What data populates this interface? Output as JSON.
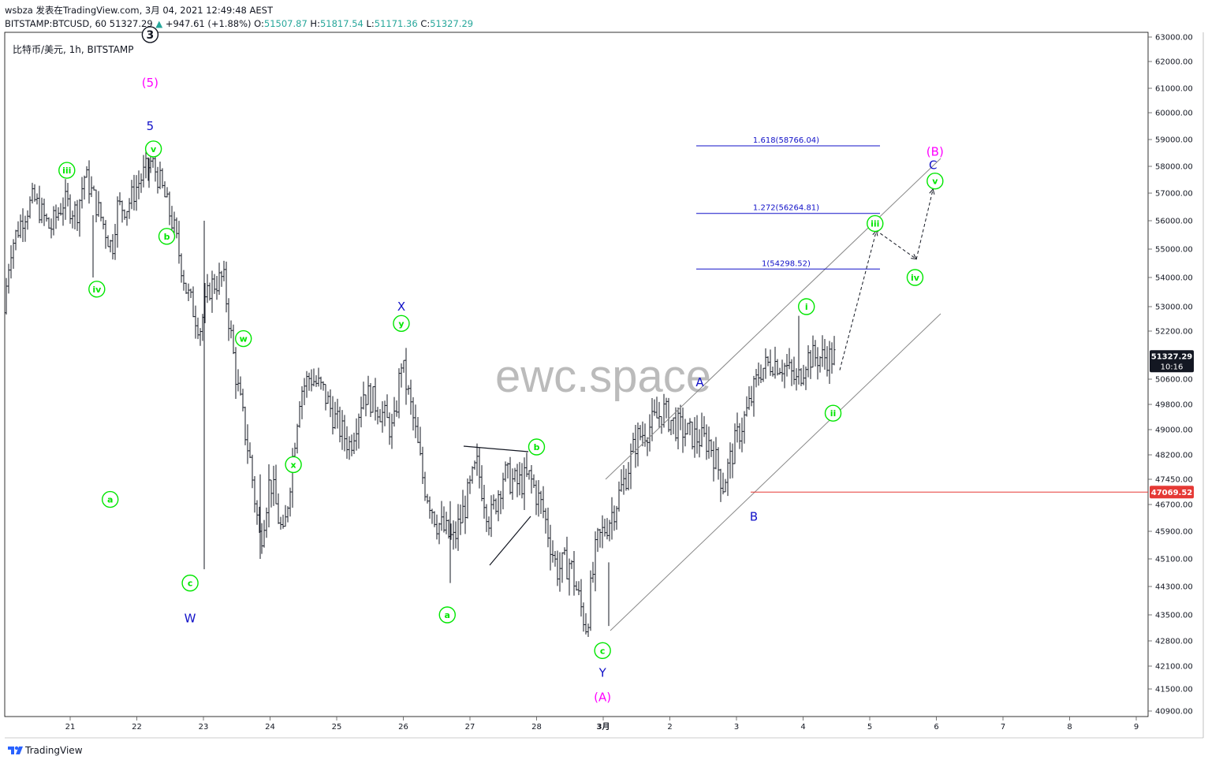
{
  "header": {
    "line1": "wsbza 发表在TradingView.com, 3月 04, 2021 12:49:48 AEST",
    "symbol": "BITSTAMP:BTCUSD, 60",
    "last": "51327.29",
    "change_arrow": "▲",
    "change": "+947.61 (+1.88%)",
    "o_label": "O:",
    "o_val": "51507.87",
    "h_label": "H:",
    "h_val": "51817.54",
    "l_label": "L:",
    "l_val": "51171.36",
    "c_label": "C:",
    "c_val": "51327.29"
  },
  "pane_title": "比特币/美元, 1h, BITSTAMP",
  "watermark": "ewc.space",
  "footer_brand": "TradingView",
  "colors": {
    "green": "#00e600",
    "blue": "#1010c8",
    "magenta": "#ff00ff",
    "red": "#e53935",
    "dark": "#131722"
  },
  "chart_data": {
    "type": "candlestick-elliott-wave",
    "instrument": "BTCUSD",
    "exchange": "BITSTAMP",
    "interval": "1h",
    "y_scale": "price",
    "y_ticks": [
      63000,
      62000,
      61000,
      60000,
      59000,
      58000,
      57000,
      56000,
      55000,
      54000,
      53000,
      52200,
      50600,
      49800,
      49000,
      48200,
      47450,
      46700,
      45900,
      45100,
      44300,
      43500,
      42800,
      42100,
      41500,
      40900
    ],
    "y_tick_labels": [
      "63000.00",
      "62000.00",
      "61000.00",
      "60000.00",
      "59000.00",
      "58000.00",
      "57000.00",
      "56000.00",
      "55000.00",
      "54000.00",
      "53000.00",
      "52200.00",
      "50600.00",
      "49800.00",
      "49000.00",
      "48200.00",
      "47450.00",
      "46700.00",
      "45900.00",
      "45100.00",
      "44300.00",
      "43500.00",
      "42800.00",
      "42100.00",
      "41500.00",
      "40900.00"
    ],
    "x_ticks": [
      "21",
      "22",
      "23",
      "24",
      "25",
      "26",
      "27",
      "28",
      "3月",
      "2",
      "3",
      "4",
      "5",
      "6",
      "7",
      "8",
      "9"
    ],
    "last_price_label": "51327.29",
    "countdown_label": "10:16",
    "support_label": "47069.52",
    "support_price": 47069.52,
    "fib_levels": [
      {
        "label": "1.618(58766.04)",
        "price": 58766.04
      },
      {
        "label": "1.272(56264.81)",
        "price": 56264.81
      },
      {
        "label": "1(54298.52)",
        "price": 54298.52
      }
    ],
    "anchors": [
      {
        "t": 0.0,
        "p": 52800
      },
      {
        "t": 0.1,
        "p": 55000
      },
      {
        "t": 0.3,
        "p": 56200
      },
      {
        "t": 0.45,
        "p": 56800
      },
      {
        "t": 0.7,
        "p": 55700
      },
      {
        "t": 0.9,
        "p": 56700
      },
      {
        "t": 1.1,
        "p": 56300
      },
      {
        "t": 1.22,
        "p": 57700
      },
      {
        "t": 1.45,
        "p": 56200
      },
      {
        "t": 1.63,
        "p": 55000
      },
      {
        "t": 1.7,
        "p": 56500
      },
      {
        "t": 1.85,
        "p": 56500
      },
      {
        "t": 2.05,
        "p": 57500
      },
      {
        "t": 2.22,
        "p": 58200
      },
      {
        "t": 2.35,
        "p": 57400
      },
      {
        "t": 2.55,
        "p": 55800
      },
      {
        "t": 2.75,
        "p": 53500
      },
      {
        "t": 2.95,
        "p": 52300
      },
      {
        "t": 3.1,
        "p": 53700
      },
      {
        "t": 3.3,
        "p": 54000
      },
      {
        "t": 3.5,
        "p": 50500
      },
      {
        "t": 3.7,
        "p": 48000
      },
      {
        "t": 3.85,
        "p": 45600
      },
      {
        "t": 4.0,
        "p": 47500
      },
      {
        "t": 4.2,
        "p": 45600
      },
      {
        "t": 4.45,
        "p": 50200
      },
      {
        "t": 4.6,
        "p": 50700
      },
      {
        "t": 4.8,
        "p": 50200
      },
      {
        "t": 5.0,
        "p": 49200
      },
      {
        "t": 5.2,
        "p": 48500
      },
      {
        "t": 5.4,
        "p": 50200
      },
      {
        "t": 5.6,
        "p": 49800
      },
      {
        "t": 5.85,
        "p": 48900
      },
      {
        "t": 5.97,
        "p": 51200
      },
      {
        "t": 6.15,
        "p": 49300
      },
      {
        "t": 6.3,
        "p": 47400
      },
      {
        "t": 6.5,
        "p": 46200
      },
      {
        "t": 6.75,
        "p": 45600
      },
      {
        "t": 6.95,
        "p": 46800
      },
      {
        "t": 7.1,
        "p": 47900
      },
      {
        "t": 7.3,
        "p": 46200
      },
      {
        "t": 7.5,
        "p": 47600
      },
      {
        "t": 7.7,
        "p": 47300
      },
      {
        "t": 7.9,
        "p": 47500
      },
      {
        "t": 8.1,
        "p": 46500
      },
      {
        "t": 8.3,
        "p": 44800
      },
      {
        "t": 8.5,
        "p": 45000
      },
      {
        "t": 8.65,
        "p": 43800
      },
      {
        "t": 8.75,
        "p": 43200
      },
      {
        "t": 8.9,
        "p": 45500
      },
      {
        "t": 9.1,
        "p": 46300
      },
      {
        "t": 9.3,
        "p": 47300
      },
      {
        "t": 9.5,
        "p": 48700
      },
      {
        "t": 9.7,
        "p": 49100
      },
      {
        "t": 9.9,
        "p": 49600
      },
      {
        "t": 10.05,
        "p": 49200
      },
      {
        "t": 10.25,
        "p": 48900
      },
      {
        "t": 10.45,
        "p": 48700
      },
      {
        "t": 10.6,
        "p": 48600
      },
      {
        "t": 10.8,
        "p": 47300
      },
      {
        "t": 11.0,
        "p": 48700
      },
      {
        "t": 11.2,
        "p": 49800
      },
      {
        "t": 11.35,
        "p": 50900
      },
      {
        "t": 11.55,
        "p": 51200
      },
      {
        "t": 11.75,
        "p": 51000
      },
      {
        "t": 11.9,
        "p": 50500
      },
      {
        "t": 12.0,
        "p": 51000
      },
      {
        "t": 12.05,
        "p": 51330
      }
    ],
    "wave_labels": [
      {
        "text": "3",
        "t": 2.2,
        "p": 63100,
        "color": "#131722",
        "style": "circle-dark"
      },
      {
        "text": "(5)",
        "t": 2.2,
        "p": 61200,
        "color": "#ff00ff",
        "style": "plain"
      },
      {
        "text": "5",
        "t": 2.2,
        "p": 59500,
        "color": "#1010c8",
        "style": "plain"
      },
      {
        "text": "v",
        "t": 2.25,
        "p": 58650,
        "color": "#00e600",
        "style": "circle"
      },
      {
        "text": "iii",
        "t": 0.95,
        "p": 57850,
        "color": "#00e600",
        "style": "circle"
      },
      {
        "text": "iv",
        "t": 1.4,
        "p": 53600,
        "color": "#00e600",
        "style": "circle"
      },
      {
        "text": "b",
        "t": 2.45,
        "p": 55450,
        "color": "#00e600",
        "style": "circle"
      },
      {
        "text": "a",
        "t": 1.6,
        "p": 46850,
        "color": "#00e600",
        "style": "circle"
      },
      {
        "text": "c",
        "t": 2.8,
        "p": 44400,
        "color": "#00e600",
        "style": "circle"
      },
      {
        "text": "W",
        "t": 2.8,
        "p": 43400,
        "color": "#1010c8",
        "style": "plain"
      },
      {
        "text": "w",
        "t": 3.6,
        "p": 51950,
        "color": "#00e600",
        "style": "circle"
      },
      {
        "text": "x",
        "t": 4.35,
        "p": 47900,
        "color": "#00e600",
        "style": "circle"
      },
      {
        "text": "y",
        "t": 5.97,
        "p": 52450,
        "color": "#00e600",
        "style": "circle"
      },
      {
        "text": "X",
        "t": 5.97,
        "p": 53000,
        "color": "#1010c8",
        "style": "plain"
      },
      {
        "text": "a",
        "t": 6.66,
        "p": 43500,
        "color": "#00e600",
        "style": "circle"
      },
      {
        "text": "b",
        "t": 8.0,
        "p": 48450,
        "color": "#00e600",
        "style": "circle"
      },
      {
        "text": "c",
        "t": 8.99,
        "p": 42530,
        "color": "#00e600",
        "style": "circle"
      },
      {
        "text": "Y",
        "t": 8.99,
        "p": 41920,
        "color": "#1010c8",
        "style": "plain"
      },
      {
        "text": "(A)",
        "t": 8.99,
        "p": 41280,
        "color": "#ff00ff",
        "style": "plain"
      },
      {
        "text": "A",
        "t": 10.45,
        "p": 50500,
        "color": "#1010c8",
        "style": "plain"
      },
      {
        "text": "B",
        "t": 11.26,
        "p": 46330,
        "color": "#1010c8",
        "style": "plain"
      },
      {
        "text": "i",
        "t": 12.05,
        "p": 53000,
        "color": "#00e600",
        "style": "circle"
      },
      {
        "text": "ii",
        "t": 12.45,
        "p": 49520,
        "color": "#00e600",
        "style": "circle"
      },
      {
        "text": "iii",
        "t": 13.08,
        "p": 55900,
        "color": "#00e600",
        "style": "circle"
      },
      {
        "text": "iv",
        "t": 13.68,
        "p": 54000,
        "color": "#00e600",
        "style": "circle"
      },
      {
        "text": "v",
        "t": 13.98,
        "p": 57450,
        "color": "#00e600",
        "style": "circle"
      },
      {
        "text": "C",
        "t": 13.95,
        "p": 58050,
        "color": "#1010c8",
        "style": "plain"
      },
      {
        "text": "(B)",
        "t": 13.98,
        "p": 58550,
        "color": "#ff00ff",
        "style": "plain"
      }
    ],
    "projection_path": [
      {
        "t": 12.55,
        "p": 50900
      },
      {
        "t": 13.1,
        "p": 55650
      },
      {
        "t": 13.7,
        "p": 54650
      },
      {
        "t": 13.95,
        "p": 57150
      }
    ]
  }
}
